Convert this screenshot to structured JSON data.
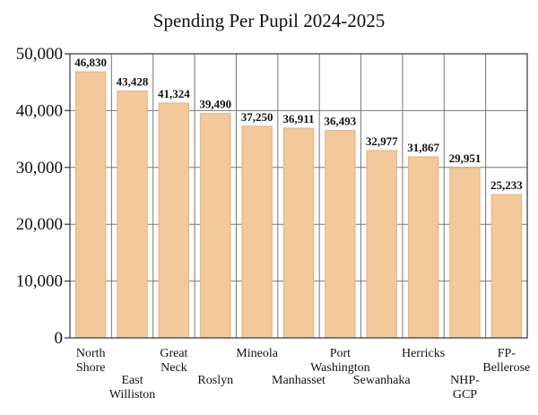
{
  "chart_data": {
    "type": "bar",
    "title": "Spending Per Pupil 2024-2025",
    "categories": [
      [
        "North",
        "Shore"
      ],
      [
        "East",
        "Williston"
      ],
      [
        "Great",
        "Neck"
      ],
      [
        "Roslyn"
      ],
      [
        "Mineola"
      ],
      [
        "Manhasset"
      ],
      [
        "Port",
        "Washington"
      ],
      [
        "Sewanhaka"
      ],
      [
        "Herricks"
      ],
      [
        "NHP-",
        "GCP"
      ],
      [
        "FP-",
        "Bellerose"
      ]
    ],
    "label_rows": [
      0,
      1,
      0,
      1,
      0,
      1,
      0,
      1,
      0,
      1,
      0
    ],
    "values": [
      46830,
      43428,
      41324,
      39490,
      37250,
      36911,
      36493,
      32977,
      31867,
      29951,
      25233
    ],
    "value_labels": [
      "46,830",
      "43,428",
      "41,324",
      "39,490",
      "37,250",
      "36,911",
      "36,493",
      "32,977",
      "31,867",
      "29,951",
      "25,233"
    ],
    "ylim": [
      0,
      50000
    ],
    "yticks": [
      0,
      10000,
      20000,
      30000,
      40000,
      50000
    ],
    "ytick_labels": [
      "0",
      "10,000",
      "20,000",
      "30,000",
      "40,000",
      "50,000"
    ],
    "grid": true,
    "bar_color": "#f3c89a"
  }
}
